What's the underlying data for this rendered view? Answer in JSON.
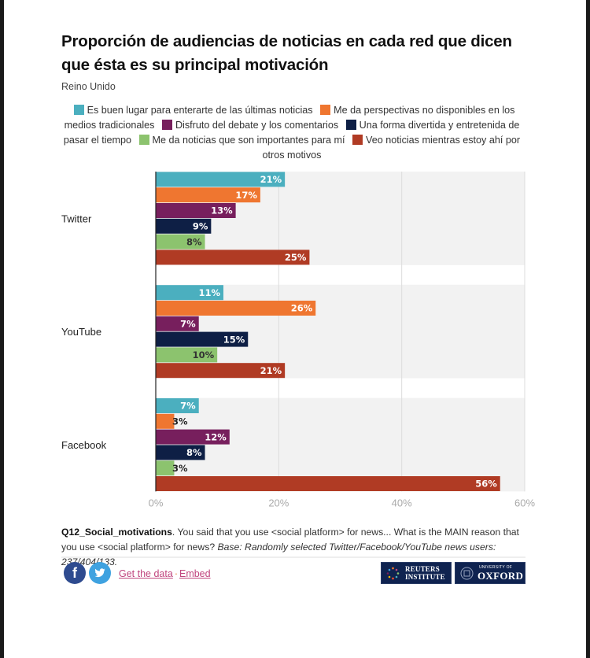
{
  "title": "Proporción de audiencias de noticias en cada red que dicen que ésta es su principal motivación",
  "subtitle": "Reino Unido",
  "legend": [
    {
      "label": "Es buen lugar para enterarte de las últimas noticias",
      "color": "#4bafbf"
    },
    {
      "label": "Me da perspectivas no disponibles en los medios tradicionales",
      "color": "#ef7630"
    },
    {
      "label": "Disfruto del debate y los comentarios",
      "color": "#771f5d"
    },
    {
      "label": "Una forma divertida y entretenida de pasar el tiempo",
      "color": "#0e1f45"
    },
    {
      "label": "Me da noticias que son importantes para mí",
      "color": "#8cc36e"
    },
    {
      "label": "Veo noticias mientras estoy ahí por otros motivos",
      "color": "#b03b24"
    }
  ],
  "chart_data": {
    "type": "bar",
    "orientation": "horizontal",
    "title": "Proporción de audiencias de noticias en cada red que dicen que ésta es su principal motivación",
    "subtitle": "Reino Unido",
    "categories": [
      "Twitter",
      "YouTube",
      "Facebook"
    ],
    "series": [
      {
        "name": "Es buen lugar para enterarte de las últimas noticias",
        "color": "#4bafbf",
        "values": [
          21,
          11,
          7
        ]
      },
      {
        "name": "Me da perspectivas no disponibles en los medios tradicionales",
        "color": "#ef7630",
        "values": [
          17,
          26,
          3
        ]
      },
      {
        "name": "Disfruto del debate y los comentarios",
        "color": "#771f5d",
        "values": [
          13,
          7,
          12
        ]
      },
      {
        "name": "Una forma divertida y entretenida de pasar el tiempo",
        "color": "#0e1f45",
        "values": [
          9,
          15,
          8
        ]
      },
      {
        "name": "Me da noticias que son importantes para mí",
        "color": "#8cc36e",
        "values": [
          8,
          10,
          3
        ]
      },
      {
        "name": "Veo noticias mientras estoy ahí por otros motivos",
        "color": "#b03b24",
        "values": [
          25,
          21,
          56
        ]
      }
    ],
    "xlabel": "",
    "ylabel": "",
    "xlim": [
      0,
      60
    ],
    "xticks": [
      0,
      20,
      40,
      60
    ],
    "xtick_labels": [
      "0%",
      "20%",
      "40%",
      "60%"
    ],
    "value_suffix": "%",
    "grid": true,
    "legend_position": "top"
  },
  "note": {
    "code": "Q12_Social_motivations",
    "text": ". You said that you use <social platform> for news... What is the MAIN reason that you use <social platform> for news? ",
    "base": "Base: Randomly selected Twitter/Facebook/YouTube news users: 237/404/133."
  },
  "footer": {
    "facebook_icon": "f",
    "twitter_icon": "🐦",
    "get_data_label": "Get the data",
    "separator": "·",
    "embed_label": "Embed",
    "reuters_line1": "REUTERS",
    "reuters_line2": "INSTITUTE",
    "oxford_small": "UNIVERSITY OF",
    "oxford_big": "OXFORD"
  }
}
